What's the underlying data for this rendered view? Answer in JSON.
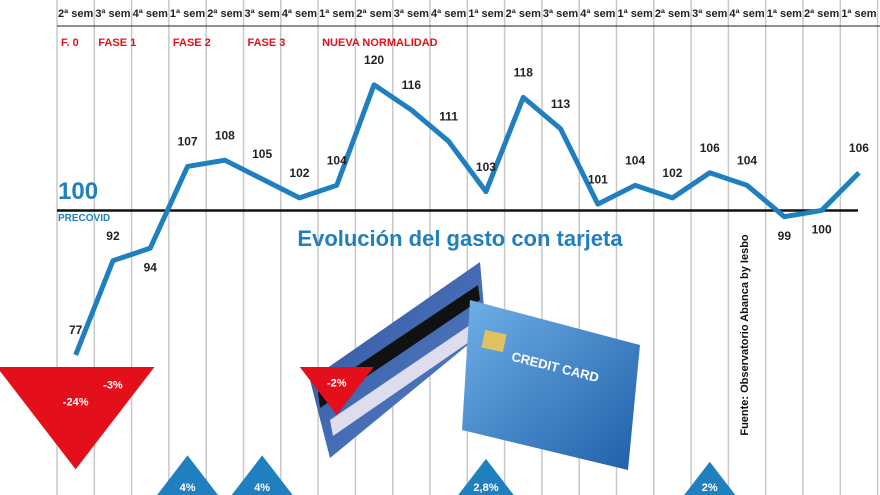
{
  "chart_data": {
    "type": "line",
    "title": "Evolución del gasto con tarjeta",
    "categories": [
      "2ª sem",
      "3ª sem",
      "4ª sem",
      "1ª sem",
      "2ª sem",
      "3ª sem",
      "4ª sem",
      "1ª sem",
      "2ª sem",
      "3ª sem",
      "4ª sem",
      "1ª sem",
      "2ª sem",
      "3ª sem",
      "4ª sem",
      "1ª sem",
      "2ª sem",
      "3ª sem",
      "4ª sem",
      "1ª sem",
      "2ª sem",
      "1ª sem"
    ],
    "values": [
      77,
      92,
      94,
      107,
      108,
      105,
      102,
      104,
      120,
      116,
      111,
      103,
      118,
      113,
      101,
      104,
      102,
      106,
      104,
      99,
      100,
      106
    ],
    "color": "#1f7fbf",
    "ylim": [
      54.7,
      133.5
    ],
    "baseline": {
      "value": 100,
      "label": "100",
      "sublabel": "PRECOVID"
    },
    "phases": [
      "F. 0",
      "FASE 1",
      "FASE 2",
      "FASE 3",
      "NUEVA NORMALIDAD"
    ],
    "changes": {
      "values": [
        -24,
        -3,
        null,
        4,
        null,
        4,
        null,
        -2,
        null,
        null,
        null,
        2.8,
        null,
        null,
        null,
        null,
        null,
        2,
        null,
        null,
        null,
        null
      ],
      "value_labels": [
        "-24%",
        "-3%",
        null,
        "4%",
        null,
        "4%",
        null,
        "-2%",
        null,
        null,
        null,
        "2,8%",
        null,
        null,
        null,
        null,
        null,
        "2%",
        null,
        null,
        null,
        null
      ],
      "up_color": "#1f7fbf",
      "down_color": "#e3101b"
    },
    "card_text": "CREDIT CARD",
    "source": "Fuente: Observatorio Abanca by Iesbo"
  }
}
